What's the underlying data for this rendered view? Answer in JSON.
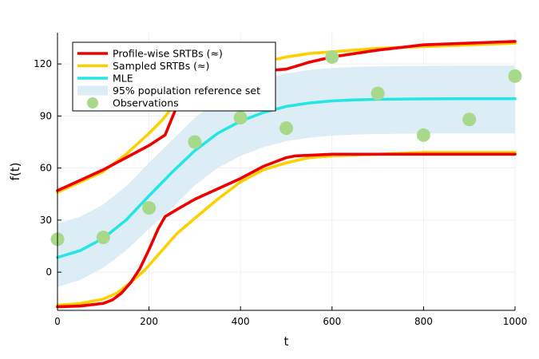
{
  "chart_data": {
    "type": "line",
    "title": "",
    "xlabel": "t",
    "ylabel": "f(t)",
    "xlim": [
      0,
      1000
    ],
    "ylim": [
      -22,
      138
    ],
    "x_ticks": [
      0,
      200,
      400,
      600,
      800,
      1000
    ],
    "x_tick_labels": [
      "0",
      "200",
      "400",
      "600",
      "800",
      "1000"
    ],
    "y_ticks": [
      0,
      30,
      60,
      90,
      120
    ],
    "y_tick_labels": [
      "0",
      "30",
      "60",
      "90",
      "120"
    ],
    "grid": true,
    "legend_position": "top-left",
    "colors": {
      "profile": "#ee0000",
      "sampled": "#ffd000",
      "mle": "#26e5e5",
      "band": "#dcedf5",
      "observations": "#a8d98a"
    },
    "legend": [
      {
        "label": "Profile-wise SRTBs (≈)",
        "kind": "line",
        "color": "#ee0000"
      },
      {
        "label": "Sampled SRTBs (≈)",
        "kind": "line",
        "color": "#ffd000"
      },
      {
        "label": "MLE",
        "kind": "line",
        "color": "#26e5e5"
      },
      {
        "label": "95% population reference set",
        "kind": "band",
        "color": "#dcedf5"
      },
      {
        "label": "Observations",
        "kind": "marker",
        "color": "#a8d98a"
      }
    ],
    "series": [
      {
        "name": "Profile-wise SRTBs (≈)",
        "role": "upper",
        "x": [
          0,
          50,
          100,
          150,
          200,
          235,
          260,
          300,
          350,
          400,
          450,
          500,
          550,
          600,
          700,
          800,
          900,
          1000
        ],
        "y": [
          47,
          53,
          59,
          66,
          73,
          79,
          95,
          108,
          113,
          115,
          116,
          117,
          121,
          124,
          128,
          131,
          132,
          133
        ]
      },
      {
        "name": "Profile-wise SRTBs (≈)",
        "role": "lower",
        "x": [
          0,
          50,
          100,
          120,
          140,
          160,
          180,
          200,
          220,
          235,
          260,
          300,
          350,
          400,
          450,
          500,
          520,
          600,
          700,
          800,
          900,
          1000
        ],
        "y": [
          -20,
          -19.5,
          -18,
          -16,
          -12,
          -6,
          2,
          13,
          25,
          32,
          36,
          42,
          48,
          54,
          61,
          66,
          67,
          68,
          68,
          68,
          68,
          68
        ]
      },
      {
        "name": "Sampled SRTBs (≈)",
        "role": "upper",
        "x": [
          0,
          50,
          100,
          150,
          200,
          230,
          260,
          300,
          350,
          400,
          450,
          500,
          550,
          600,
          700,
          800,
          900,
          1000
        ],
        "y": [
          46,
          52,
          58,
          68,
          80,
          88,
          98,
          107,
          113,
          117,
          121,
          124,
          126,
          127,
          129,
          130,
          131,
          132
        ]
      },
      {
        "name": "Sampled SRTBs (≈)",
        "role": "lower",
        "x": [
          0,
          50,
          100,
          130,
          160,
          190,
          220,
          260,
          300,
          350,
          400,
          450,
          500,
          550,
          600,
          700,
          800,
          900,
          1000
        ],
        "y": [
          -19,
          -18,
          -15.5,
          -12,
          -6,
          1,
          10,
          22,
          31,
          42,
          52,
          59,
          63,
          66,
          67,
          68,
          69,
          69,
          69
        ]
      },
      {
        "name": "MLE",
        "role": "mle",
        "x": [
          0,
          50,
          100,
          150,
          200,
          250,
          300,
          350,
          400,
          450,
          500,
          550,
          600,
          650,
          700,
          800,
          900,
          1000
        ],
        "y": [
          8.5,
          12.5,
          19.5,
          30,
          44,
          57.5,
          70,
          80,
          87,
          92,
          95.5,
          97.5,
          98.7,
          99.3,
          99.6,
          99.9,
          100,
          100
        ]
      }
    ],
    "band": {
      "name": "95% population reference set",
      "x": [
        0,
        50,
        100,
        150,
        200,
        250,
        300,
        350,
        400,
        450,
        500,
        550,
        600,
        650,
        700,
        800,
        900,
        1000
      ],
      "lower": [
        -8.5,
        -4.5,
        2.5,
        12.5,
        25,
        37,
        50,
        60,
        67,
        72,
        75.5,
        77.5,
        78.7,
        79.3,
        79.6,
        79.9,
        80,
        80
      ],
      "upper": [
        28,
        32,
        39,
        49.5,
        63,
        76,
        89,
        99,
        106,
        111,
        114.5,
        116.5,
        117.7,
        118.3,
        118.6,
        118.9,
        119,
        119
      ]
    },
    "observations": {
      "name": "Observations",
      "x": [
        0,
        100,
        200,
        300,
        400,
        500,
        600,
        700,
        800,
        900,
        1000
      ],
      "y": [
        19,
        20,
        37,
        75,
        89,
        83,
        124,
        103,
        79,
        88,
        113
      ]
    }
  }
}
